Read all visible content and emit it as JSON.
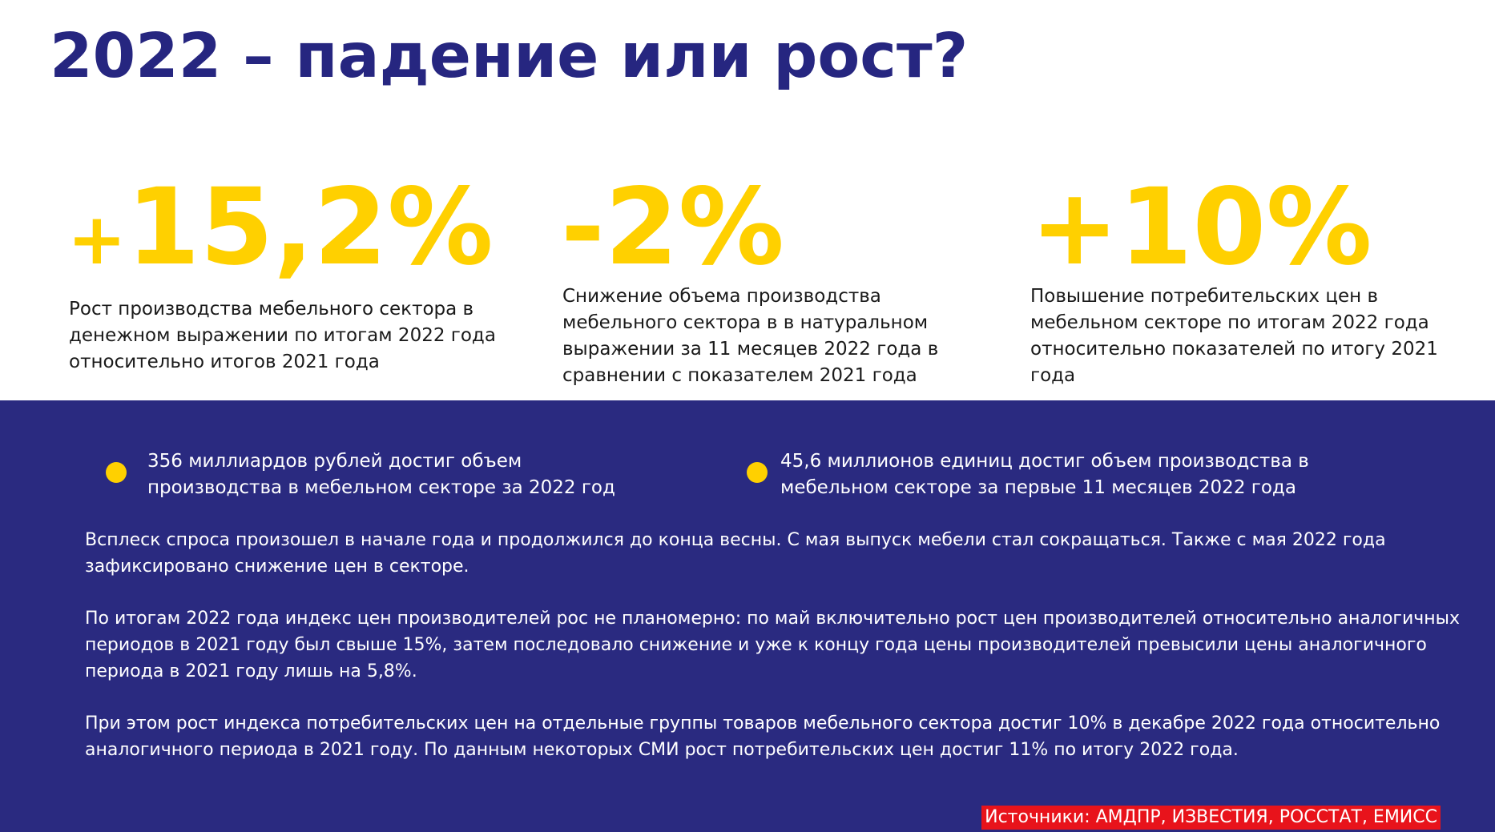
{
  "title": "2022 – падение или рост?",
  "stats": [
    {
      "sign": "+",
      "value": "15,2%",
      "description": "Рост производства мебельного сектора в денежном выражении по итогам 2022 года относительно итогов 2021 года"
    },
    {
      "sign": "",
      "value": "-2%",
      "description": "Снижение объема производства мебельного сектора в в натуральном выражении за 11 месяцев 2022 года в сравнении с показателем 2021 года"
    },
    {
      "sign": "",
      "value": "+10%",
      "description": "Повышение потребительских цен в мебельном секторе по итогам 2022 года относительно показателей по итогу 2021 года"
    }
  ],
  "bullets": [
    "356 миллиардов рублей достиг объем производства в мебельном секторе за 2022 год",
    "45,6 миллионов единиц достиг объем производства в мебельном секторе за первые 11 месяцев 2022 года"
  ],
  "paragraphs": [
    "Всплеск спроса произошел в начале года и продолжился до конца весны. С мая выпуск мебели стал сокращаться. Также с мая 2022 года зафиксировано снижение цен в секторе.",
    "По итогам 2022 года индекс цен производителей рос не планомерно: по май включительно рост цен производителей относительно аналогичных периодов в 2021 году был свыше 15%, затем последовало снижение и уже к концу года цены производителей превысили цены аналогичного периода в 2021 году лишь на 5,8%.",
    "При этом рост индекса потребительских цен на отдельные группы товаров мебельного сектора достиг 10% в декабре 2022 года относительно аналогичного периода в 2021 году. По данным некоторых СМИ рост потребительских цен достиг 11% по итогу 2022 года."
  ],
  "sources": "Источники: АМДПР, ИЗВЕСТИЯ, РОССТАТ, ЕМИСС",
  "colors": {
    "title": "#262680",
    "accent_yellow": "#FFD000",
    "blue_background": "#2A2A80",
    "sources_background": "#E8131B"
  }
}
